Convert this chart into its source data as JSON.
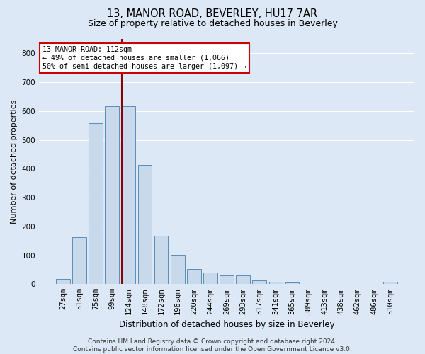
{
  "title": "13, MANOR ROAD, BEVERLEY, HU17 7AR",
  "subtitle": "Size of property relative to detached houses in Beverley",
  "xlabel": "Distribution of detached houses by size in Beverley",
  "ylabel": "Number of detached properties",
  "bar_labels": [
    "27sqm",
    "51sqm",
    "75sqm",
    "99sqm",
    "124sqm",
    "148sqm",
    "172sqm",
    "196sqm",
    "220sqm",
    "244sqm",
    "269sqm",
    "293sqm",
    "317sqm",
    "341sqm",
    "365sqm",
    "389sqm",
    "413sqm",
    "438sqm",
    "462sqm",
    "486sqm",
    "510sqm"
  ],
  "bar_values": [
    18,
    163,
    557,
    616,
    616,
    412,
    167,
    102,
    52,
    39,
    30,
    30,
    14,
    9,
    5,
    0,
    0,
    0,
    0,
    0,
    7
  ],
  "bar_color": "#c9d9ec",
  "bar_edgecolor": "#5b8db8",
  "vline_x": 3.58,
  "vline_color": "#8b0000",
  "annotation_text": "13 MANOR ROAD: 112sqm\n← 49% of detached houses are smaller (1,066)\n50% of semi-detached houses are larger (1,097) →",
  "annotation_box_color": "#ffffff",
  "annotation_box_edgecolor": "#cc0000",
  "ylim": [
    0,
    850
  ],
  "yticks": [
    0,
    100,
    200,
    300,
    400,
    500,
    600,
    700,
    800
  ],
  "footnote": "Contains HM Land Registry data © Crown copyright and database right 2024.\nContains public sector information licensed under the Open Government Licence v3.0.",
  "bg_color": "#dce8f5",
  "plot_bg_color": "#dce8f5",
  "grid_color": "#ffffff",
  "title_fontsize": 10.5,
  "subtitle_fontsize": 9,
  "xlabel_fontsize": 8.5,
  "ylabel_fontsize": 8,
  "tick_fontsize": 7.5,
  "footnote_fontsize": 6.5
}
